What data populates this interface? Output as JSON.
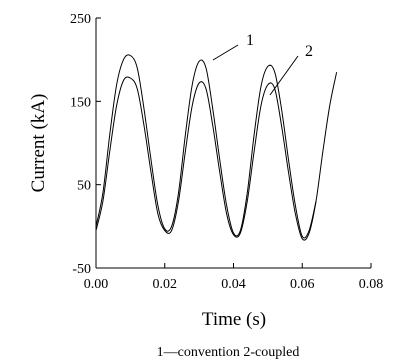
{
  "chart_data": {
    "type": "line",
    "xlabel": "Time (s)",
    "ylabel": "Current (kA)",
    "xlim": [
      0.0,
      0.08
    ],
    "ylim": [
      -50,
      250
    ],
    "x_ticks": [
      "0.00",
      "0.02",
      "0.04",
      "0.06",
      "0.08"
    ],
    "y_ticks": [
      "-50",
      "50",
      "150",
      "250"
    ],
    "grid": false,
    "series": [
      {
        "name": "1",
        "x": [
          0.0,
          0.002,
          0.004,
          0.006,
          0.008,
          0.01,
          0.012,
          0.014,
          0.016,
          0.018,
          0.02,
          0.022,
          0.024,
          0.026,
          0.028,
          0.03,
          0.032,
          0.034,
          0.036,
          0.038,
          0.04,
          0.042,
          0.044,
          0.046,
          0.048,
          0.05,
          0.052,
          0.054,
          0.056,
          0.058,
          0.06,
          0.062,
          0.064
        ],
        "y": [
          0,
          40,
          110,
          170,
          200,
          205,
          190,
          140,
          80,
          25,
          -3,
          0,
          40,
          110,
          170,
          198,
          190,
          140,
          80,
          25,
          -8,
          -5,
          40,
          110,
          168,
          192,
          185,
          140,
          80,
          25,
          -12,
          -5,
          30
        ]
      },
      {
        "name": "2",
        "x": [
          0.0,
          0.002,
          0.004,
          0.006,
          0.008,
          0.01,
          0.012,
          0.014,
          0.016,
          0.018,
          0.02,
          0.022,
          0.024,
          0.026,
          0.028,
          0.03,
          0.032,
          0.034,
          0.036,
          0.038,
          0.04,
          0.042,
          0.044,
          0.046,
          0.048,
          0.05,
          0.052,
          0.054,
          0.056,
          0.058,
          0.06,
          0.062,
          0.064,
          0.066,
          0.068,
          0.07
        ],
        "y": [
          -5,
          30,
          90,
          145,
          175,
          178,
          165,
          120,
          65,
          15,
          -5,
          -5,
          30,
          90,
          145,
          172,
          165,
          120,
          65,
          15,
          -10,
          -8,
          30,
          90,
          145,
          170,
          165,
          120,
          65,
          15,
          -15,
          -8,
          30,
          90,
          145,
          185
        ]
      }
    ],
    "series_labels": [
      "1",
      "2"
    ],
    "caption": "1—convention 2-coupled"
  }
}
